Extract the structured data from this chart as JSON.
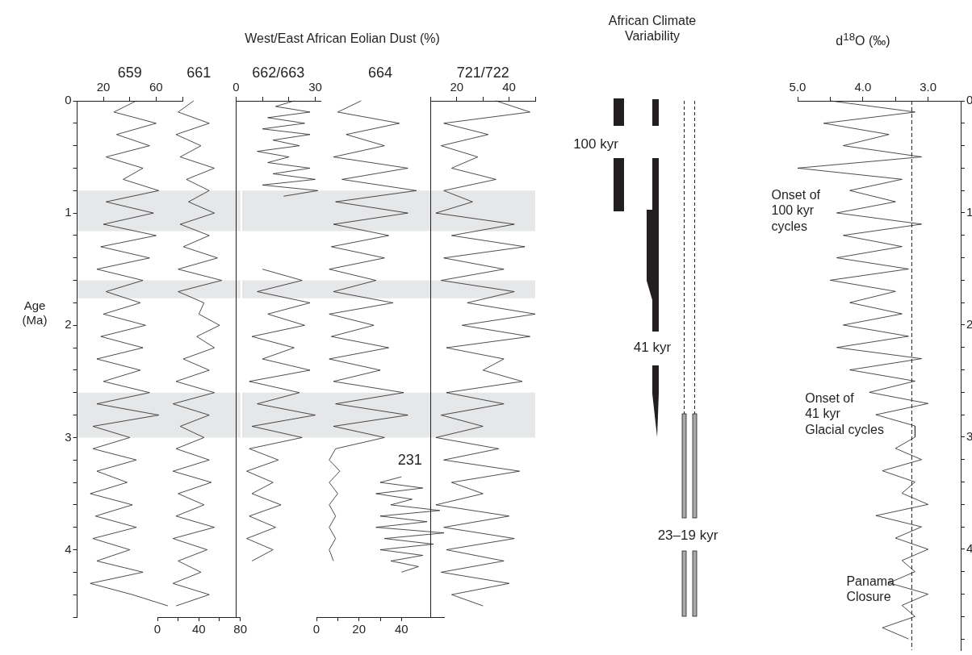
{
  "chart_data": [
    {
      "type": "line",
      "ylabel": "Age\n(Ma)",
      "series": [
        {
          "name": "659",
          "color": "#231f20",
          "x": [
            45,
            28,
            60,
            30,
            55,
            22,
            50,
            35,
            62,
            22,
            58,
            20,
            60,
            18,
            55,
            15,
            50,
            22,
            48,
            20,
            52,
            18,
            50,
            15,
            48,
            20,
            55,
            15,
            62,
            12,
            40,
            12,
            45,
            15,
            38,
            10,
            42,
            14,
            45,
            12,
            40,
            15,
            50,
            10,
            42,
            69
          ],
          "values": [
            0,
            0.1,
            0.2,
            0.3,
            0.4,
            0.5,
            0.6,
            0.7,
            0.8,
            0.9,
            1,
            1.1,
            1.2,
            1.3,
            1.4,
            1.5,
            1.6,
            1.7,
            1.8,
            1.9,
            2,
            2.1,
            2.2,
            2.3,
            2.4,
            2.5,
            2.6,
            2.7,
            2.8,
            2.9,
            3,
            3.1,
            3.2,
            3.3,
            3.4,
            3.5,
            3.6,
            3.7,
            3.8,
            3.9,
            4,
            4.1,
            4.2,
            4.3,
            4.4,
            4.5
          ]
        }
      ],
      "xlim": [
        0,
        80
      ],
      "xticks": [
        20,
        {
          "value": 40,
          "label": null
        },
        60,
        {
          "value": 80,
          "label": null
        }
      ],
      "ylim": [
        4.6,
        0
      ],
      "yticks": [
        0,
        {
          "value": 0.2,
          "label": null
        },
        {
          "value": 0.4,
          "label": null
        },
        {
          "value": 0.6,
          "label": null
        },
        {
          "value": 0.8,
          "label": null
        },
        1,
        {
          "value": 1.2,
          "label": null
        },
        {
          "value": 1.4,
          "label": null
        },
        {
          "value": 1.6,
          "label": null
        },
        {
          "value": 1.8,
          "label": null
        },
        2,
        {
          "value": 2.2,
          "label": null
        },
        {
          "value": 2.4,
          "label": null
        },
        {
          "value": 2.6,
          "label": null
        },
        {
          "value": 2.8,
          "label": null
        },
        3,
        {
          "value": 3.2,
          "label": null
        },
        {
          "value": 3.4,
          "label": null
        },
        {
          "value": 3.6,
          "label": null
        },
        {
          "value": 3.8,
          "label": null
        },
        4,
        {
          "value": 4.2,
          "label": null
        },
        {
          "value": 4.4,
          "label": null
        },
        {
          "value": 4.6,
          "label": null
        }
      ],
      "bands": [
        {
          "axis": "y",
          "from": 0.8,
          "to": 1.16,
          "color": "#e6e7e8"
        },
        {
          "axis": "y",
          "from": 1.6,
          "to": 1.76,
          "color": "#e6e7e8"
        },
        {
          "axis": "y",
          "from": 2.6,
          "to": 3.0,
          "color": "#e6e7e8"
        }
      ]
    },
    {
      "type": "line",
      "series": [
        {
          "name": "661",
          "color": "#231f20",
          "x": [
            35,
            20,
            50,
            18,
            42,
            22,
            55,
            28,
            50,
            30,
            55,
            22,
            50,
            25,
            58,
            20,
            62,
            20,
            45,
            40,
            60,
            38,
            55,
            25,
            50,
            18,
            55,
            15,
            50,
            22,
            45,
            18,
            50,
            15,
            52,
            20,
            45,
            18,
            55,
            15,
            48,
            20,
            42,
            15,
            50,
            18
          ],
          "values": [
            0,
            0.1,
            0.2,
            0.3,
            0.4,
            0.5,
            0.6,
            0.7,
            0.8,
            0.9,
            1,
            1.1,
            1.2,
            1.3,
            1.4,
            1.5,
            1.6,
            1.7,
            1.8,
            1.9,
            2,
            2.1,
            2.2,
            2.3,
            2.4,
            2.5,
            2.6,
            2.7,
            2.8,
            2.9,
            3,
            3.1,
            3.2,
            3.3,
            3.4,
            3.5,
            3.6,
            3.7,
            3.8,
            3.9,
            4,
            4.1,
            4.2,
            4.3,
            4.4,
            4.5
          ]
        }
      ],
      "xlim": [
        0,
        80
      ],
      "xticks": [
        0,
        {
          "value": 20,
          "label": null
        },
        40,
        {
          "value": 60,
          "label": null
        },
        80
      ],
      "ylim": [
        4.6,
        0
      ],
      "tick_labels": "x",
      "bands": [
        {
          "axis": "y",
          "from": 0.8,
          "to": 1.16,
          "color": "#e6e7e8"
        },
        {
          "axis": "y",
          "from": 1.6,
          "to": 1.76,
          "color": "#e6e7e8"
        },
        {
          "axis": "y",
          "from": 2.6,
          "to": 3.0,
          "color": "#e6e7e8"
        }
      ]
    },
    {
      "type": "line",
      "series": [
        {
          "name": "662/663",
          "color": "#231f20",
          "x": [
            22,
            15,
            28,
            12,
            26,
            10,
            28,
            14,
            24,
            8,
            20,
            12,
            28,
            14,
            30,
            10,
            31,
            18,
            null,
            10,
            25,
            8,
            28,
            12,
            26,
            6,
            22,
            10,
            28,
            5,
            24,
            8,
            30,
            6,
            25,
            5,
            16,
            4,
            14,
            6,
            17,
            5,
            15,
            4,
            14,
            6
          ],
          "values": [
            0,
            0.05,
            0.1,
            0.15,
            0.2,
            0.25,
            0.3,
            0.35,
            0.4,
            0.45,
            0.5,
            0.55,
            0.6,
            0.65,
            0.7,
            0.75,
            0.8,
            0.85,
            null,
            1.5,
            1.6,
            1.7,
            1.8,
            1.9,
            2,
            2.1,
            2.2,
            2.3,
            2.4,
            2.5,
            2.6,
            2.7,
            2.8,
            2.9,
            3,
            3.1,
            3.2,
            3.3,
            3.4,
            3.5,
            3.6,
            3.7,
            3.8,
            3.9,
            4,
            4.1
          ]
        }
      ],
      "xlim": [
        0,
        32
      ],
      "xticks": [
        0,
        {
          "value": 10,
          "label": null
        },
        {
          "value": 20,
          "label": null
        },
        30
      ],
      "ylim": [
        4.6,
        0
      ],
      "tick_labels": "x",
      "bands": [
        {
          "axis": "y",
          "from": 0.8,
          "to": 1.16,
          "color": "#e6e7e8"
        },
        {
          "axis": "y",
          "from": 1.6,
          "to": 1.76,
          "color": "#e6e7e8"
        },
        {
          "axis": "y",
          "from": 2.6,
          "to": 3.0,
          "color": "#e6e7e8"
        }
      ]
    },
    {
      "type": "line",
      "title": "West/East African Eolian Dust (%)",
      "series": [
        {
          "name": "664",
          "color": "#231f20",
          "x": [
            21,
            10,
            39,
            14,
            32,
            8,
            43,
            12,
            47,
            9,
            43,
            8,
            34,
            7,
            32,
            6,
            28,
            8,
            36,
            6,
            27,
            7,
            34,
            6,
            30,
            8,
            41,
            9,
            43,
            8,
            32,
            9,
            6,
            11,
            6,
            10,
            6,
            9,
            6,
            9,
            6,
            8
          ],
          "values": [
            0,
            0.1,
            0.2,
            0.3,
            0.4,
            0.5,
            0.6,
            0.7,
            0.8,
            0.9,
            1,
            1.1,
            1.2,
            1.3,
            1.4,
            1.5,
            1.6,
            1.7,
            1.8,
            1.9,
            2,
            2.1,
            2.2,
            2.3,
            2.4,
            2.5,
            2.6,
            2.7,
            2.8,
            2.9,
            3,
            3.1,
            3.2,
            3.3,
            3.4,
            3.5,
            3.6,
            3.7,
            3.8,
            3.9,
            4,
            4.1
          ]
        },
        {
          "name": "231",
          "color": "#231f20",
          "x": [
            40,
            30,
            50,
            28,
            45,
            35,
            58,
            30,
            52,
            28,
            60,
            32,
            55,
            30,
            50,
            35,
            48,
            40
          ],
          "values": [
            3.35,
            3.4,
            3.45,
            3.5,
            3.55,
            3.6,
            3.65,
            3.7,
            3.75,
            3.8,
            3.85,
            3.9,
            3.95,
            4,
            4.05,
            4.1,
            4.15,
            4.2
          ]
        }
      ],
      "xlim": [
        0,
        60
      ],
      "xticks": [
        0,
        {
          "value": 10,
          "label": null
        },
        20,
        {
          "value": 30,
          "label": null
        },
        40
      ],
      "ylim": [
        4.6,
        0
      ],
      "tick_labels": "x",
      "bands": [
        {
          "axis": "y",
          "from": 0.8,
          "to": 1.16,
          "color": "#e6e7e8"
        },
        {
          "axis": "y",
          "from": 1.6,
          "to": 1.76,
          "color": "#e6e7e8"
        },
        {
          "axis": "y",
          "from": 2.6,
          "to": 3.0,
          "color": "#e6e7e8"
        }
      ]
    },
    {
      "type": "line",
      "series": [
        {
          "name": "721/722",
          "color": "#231f20",
          "x": [
            35,
            48,
            15,
            32,
            14,
            28,
            18,
            35,
            15,
            26,
            12,
            42,
            18,
            46,
            15,
            38,
            14,
            42,
            24,
            50,
            22,
            48,
            16,
            38,
            30,
            45,
            16,
            38,
            14,
            30,
            12,
            36,
            15,
            44,
            18,
            30,
            12,
            40,
            15,
            42,
            16,
            38,
            14,
            40,
            18,
            30
          ],
          "values": [
            0,
            0.1,
            0.2,
            0.3,
            0.4,
            0.5,
            0.6,
            0.7,
            0.8,
            0.9,
            1,
            1.1,
            1.2,
            1.3,
            1.4,
            1.5,
            1.6,
            1.7,
            1.8,
            1.9,
            2,
            2.1,
            2.2,
            2.3,
            2.4,
            2.5,
            2.6,
            2.7,
            2.8,
            2.9,
            3,
            3.1,
            3.2,
            3.3,
            3.4,
            3.5,
            3.6,
            3.7,
            3.8,
            3.9,
            4,
            4.1,
            4.2,
            4.3,
            4.4,
            4.5
          ]
        }
      ],
      "xlim": [
        10,
        50
      ],
      "xticks": [
        {
          "value": 10,
          "label": null
        },
        20,
        {
          "value": 30,
          "label": null
        },
        40,
        {
          "value": 50,
          "label": null
        }
      ],
      "ylim": [
        4.6,
        0
      ],
      "tick_labels": "x",
      "bands": [
        {
          "axis": "y",
          "from": 0.8,
          "to": 1.16,
          "color": "#e6e7e8"
        },
        {
          "axis": "y",
          "from": 1.6,
          "to": 1.76,
          "color": "#e6e7e8"
        },
        {
          "axis": "y",
          "from": 2.6,
          "to": 3.0,
          "color": "#e6e7e8"
        }
      ]
    },
    {
      "type": "other",
      "title": "African Climate\nVariability",
      "annotations": [
        "100 kyr",
        "41 kyr",
        "23–19 kyr"
      ]
    },
    {
      "type": "line",
      "title": "d$^{18}$O (‰)",
      "series": [
        {
          "color": "#231f20",
          "x": [
            4.5,
            3.2,
            4.6,
            3.6,
            4.3,
            3.1,
            5.0,
            3.4,
            4.2,
            3.5,
            4.4,
            3.1,
            4.3,
            3.4,
            4.4,
            3.3,
            4.5,
            3.5,
            4.2,
            3.4,
            4.3,
            3.3,
            4.4,
            3.1,
            4.2,
            3.2,
            3.9,
            3.0,
            3.8,
            3.2,
            3.2,
            3.5,
            3.1,
            3.7,
            3.2,
            3.4,
            3.0,
            3.8,
            3.1,
            3.5,
            3.0,
            3.4,
            3.2,
            3.6,
            3.0,
            3.4,
            3.2,
            3.7,
            3.3
          ],
          "values": [
            0,
            0.1,
            0.2,
            0.3,
            0.4,
            0.5,
            0.6,
            0.7,
            0.8,
            0.9,
            1,
            1.1,
            1.2,
            1.3,
            1.4,
            1.5,
            1.6,
            1.7,
            1.8,
            1.9,
            2,
            2.1,
            2.2,
            2.3,
            2.4,
            2.5,
            2.6,
            2.7,
            2.8,
            2.9,
            3,
            3.1,
            3.2,
            3.3,
            3.4,
            3.5,
            3.6,
            3.7,
            3.8,
            3.9,
            4,
            4.1,
            4.2,
            4.3,
            4.4,
            4.5,
            4.6,
            4.7,
            4.8
          ]
        }
      ],
      "xlim": [
        5.0,
        2.5
      ],
      "xticks": [
        {
          "value": 5,
          "label": "5.0"
        },
        {
          "value": 4.5,
          "label": null
        },
        {
          "value": 4,
          "label": "4.0"
        },
        {
          "value": 3.5,
          "label": null
        },
        {
          "value": 3,
          "label": "3.0"
        }
      ],
      "ylim": [
        4.9,
        0
      ],
      "yticks": [
        0,
        {
          "value": 0.2,
          "label": null
        },
        {
          "value": 0.4,
          "label": null
        },
        {
          "value": 0.6,
          "label": null
        },
        {
          "value": 0.8,
          "label": null
        },
        1,
        {
          "value": 1.2,
          "label": null
        },
        {
          "value": 1.4,
          "label": null
        },
        {
          "value": 1.6,
          "label": null
        },
        {
          "value": 1.8,
          "label": null
        },
        2,
        {
          "value": 2.2,
          "label": null
        },
        {
          "value": 2.4,
          "label": null
        },
        {
          "value": 2.6,
          "label": null
        },
        {
          "value": 2.8,
          "label": null
        },
        3,
        {
          "value": 3.2,
          "label": null
        },
        {
          "value": 3.4,
          "label": null
        },
        {
          "value": 3.6,
          "label": null
        },
        {
          "value": 3.8,
          "label": null
        },
        4,
        {
          "value": 4.2,
          "label": null
        },
        {
          "value": 4.4,
          "label": null
        },
        {
          "value": 4.6,
          "label": null
        },
        {
          "value": 4.8,
          "label": null
        }
      ],
      "ref_lines": [
        {
          "axis": "x",
          "value": 3.25,
          "line_style": "dashed"
        }
      ],
      "annotations": [
        "Onset of\n100 kyr\ncycles",
        "Onset of\n41 kyr\nGlacial cycles",
        "Panama\nClosure"
      ]
    }
  ]
}
